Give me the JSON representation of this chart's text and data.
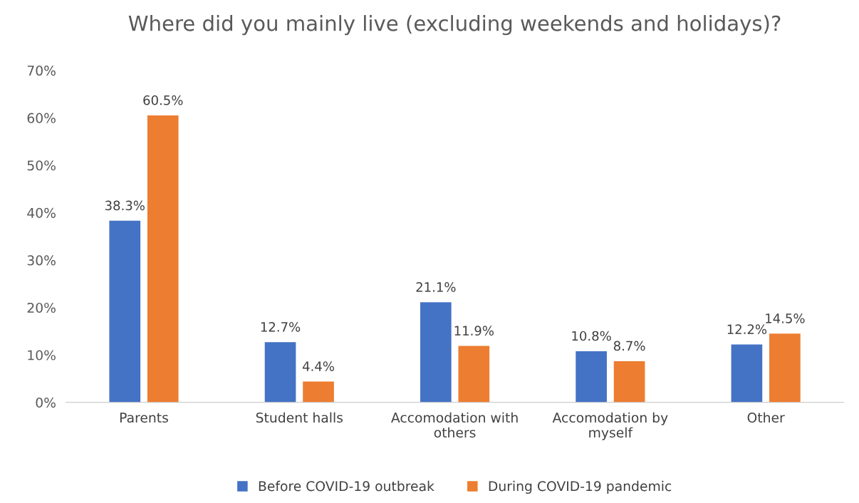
{
  "chart_data": {
    "type": "bar",
    "title": "Where did you mainly live (excluding weekends and holidays)?",
    "categories": [
      "Parents",
      "Student halls",
      "Accomodation with others",
      "Accomodation by myself",
      "Other"
    ],
    "series": [
      {
        "name": "Before COVID-19 outbreak",
        "color": "#4472c4",
        "values": [
          38.3,
          12.7,
          21.1,
          10.8,
          12.2
        ],
        "value_labels": [
          "38.3%",
          "12.7%",
          "21.1%",
          "10.8%",
          "12.2%"
        ]
      },
      {
        "name": "During COVID-19 pandemic",
        "color": "#ed7d31",
        "values": [
          60.5,
          4.4,
          11.9,
          8.7,
          14.5
        ],
        "value_labels": [
          "60.5%",
          "4.4%",
          "11.9%",
          "8.7%",
          "14.5%"
        ]
      }
    ],
    "ylim": [
      0,
      70
    ],
    "yticks": [
      {
        "value": 0,
        "label": "0%"
      },
      {
        "value": 10,
        "label": "10%"
      },
      {
        "value": 20,
        "label": "20%"
      },
      {
        "value": 30,
        "label": "30%"
      },
      {
        "value": 40,
        "label": "40%"
      },
      {
        "value": 50,
        "label": "50%"
      },
      {
        "value": 60,
        "label": "60%"
      },
      {
        "value": 70,
        "label": "70%"
      }
    ],
    "grid": false,
    "legend": "bottom"
  }
}
